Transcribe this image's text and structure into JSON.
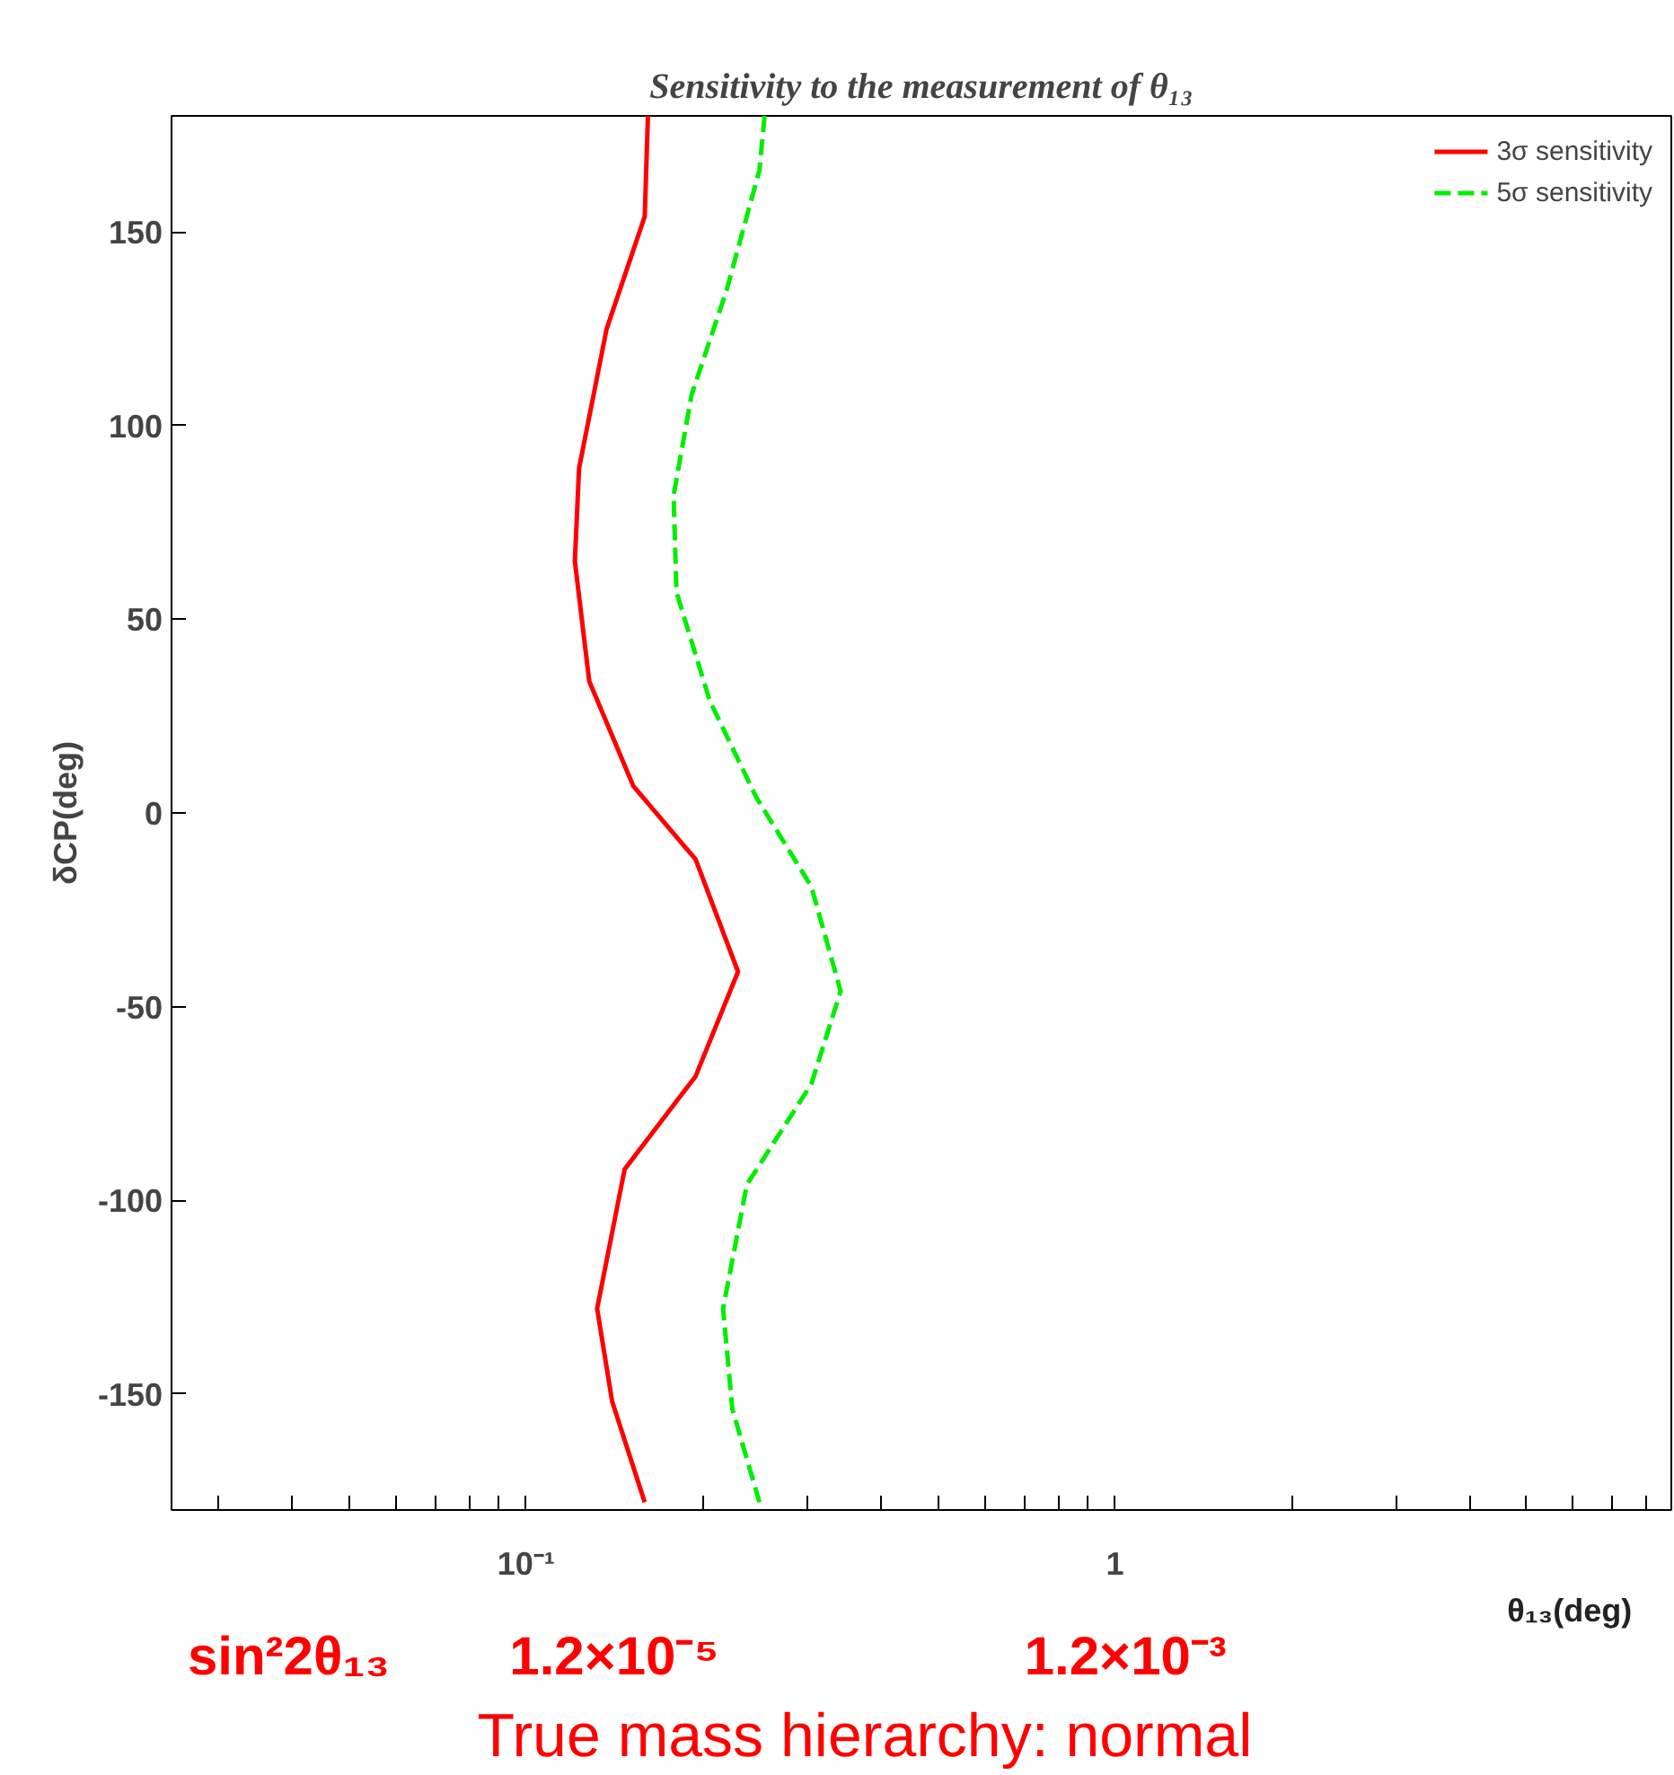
{
  "chart_data": {
    "type": "line",
    "title": "Sensitivity to the measurement of θ₁₃",
    "xlabel": "θ₁₃(deg)",
    "ylabel": "δCP(deg)",
    "log": "x",
    "xlim": [
      0.025,
      8.8
    ],
    "ylim": [
      -180,
      180
    ],
    "xticks": [
      {
        "value": 0.03,
        "label": null
      },
      {
        "value": 0.04,
        "label": null
      },
      {
        "value": 0.05,
        "label": null
      },
      {
        "value": 0.06,
        "label": null
      },
      {
        "value": 0.07,
        "label": null
      },
      {
        "value": 0.08,
        "label": null
      },
      {
        "value": 0.09,
        "label": null
      },
      {
        "value": 0.1,
        "label": "10⁻¹"
      },
      {
        "value": 0.2,
        "label": null
      },
      {
        "value": 0.3,
        "label": null
      },
      {
        "value": 0.4,
        "label": null
      },
      {
        "value": 0.5,
        "label": null
      },
      {
        "value": 0.6,
        "label": null
      },
      {
        "value": 0.7,
        "label": null
      },
      {
        "value": 0.8,
        "label": null
      },
      {
        "value": 0.9,
        "label": null
      },
      {
        "value": 1,
        "label": "1"
      },
      {
        "value": 2,
        "label": null
      },
      {
        "value": 3,
        "label": null
      },
      {
        "value": 4,
        "label": null
      },
      {
        "value": 5,
        "label": null
      },
      {
        "value": 6,
        "label": null
      },
      {
        "value": 7,
        "label": null
      },
      {
        "value": 8,
        "label": null
      }
    ],
    "yticks": [
      -150,
      -100,
      -50,
      0,
      50,
      100,
      150
    ],
    "grid": false,
    "legend": "top right",
    "series": [
      {
        "name": "3σ sensitivity",
        "color": "#ff0000",
        "line_style": "solid",
        "x": [
          0.161,
          0.159,
          0.137,
          0.123,
          0.121,
          0.128,
          0.152,
          0.194,
          0.229,
          0.194,
          0.147,
          0.132,
          0.14,
          0.159
        ],
        "values": [
          180,
          154,
          125,
          89,
          65,
          34,
          7,
          -12,
          -41,
          -68,
          -92,
          -128,
          -152,
          -178
        ]
      },
      {
        "name": "5σ sensitivity",
        "color": "#00ee00",
        "line_style": "dashed",
        "x": [
          0.254,
          0.249,
          0.219,
          0.191,
          0.178,
          0.18,
          0.205,
          0.246,
          0.305,
          0.342,
          0.305,
          0.237,
          0.216,
          0.224,
          0.249
        ],
        "values": [
          180,
          166,
          135,
          108,
          82,
          57,
          29,
          4,
          -19,
          -46,
          -70,
          -96,
          -128,
          -154,
          -178
        ]
      }
    ],
    "annotations": [
      "sin²2θ₁₃",
      "1.2×10⁻⁵",
      "1.2×10⁻³",
      "True mass hierarchy: normal"
    ]
  }
}
